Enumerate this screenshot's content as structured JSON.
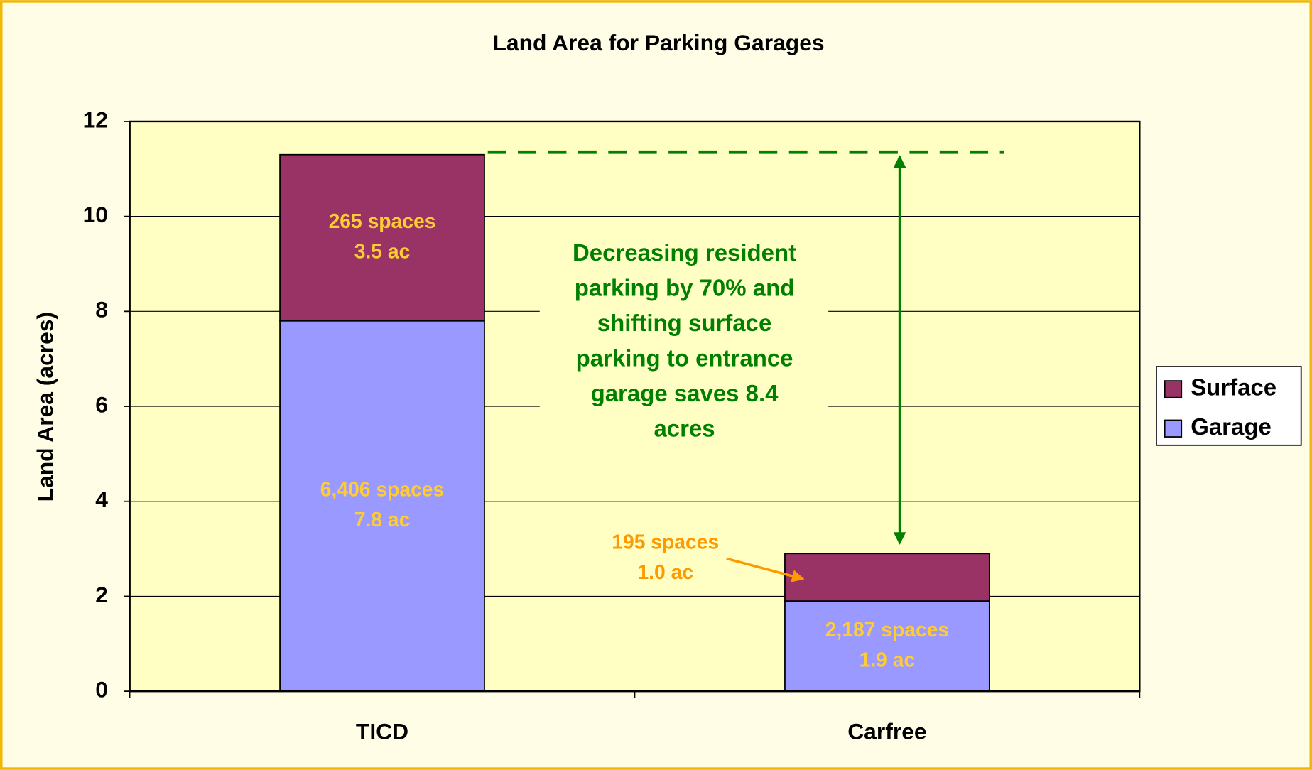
{
  "chart_data": {
    "type": "stacked_bar",
    "title": "Land Area for Parking Garages",
    "ylabel": "Land Area (acres)",
    "categories": [
      "TICD",
      "Carfree"
    ],
    "series": [
      {
        "name": "Garage",
        "color": "#9999ff",
        "values": [
          7.8,
          1.9
        ],
        "value_labels": [
          [
            "6,406 spaces",
            "7.8 ac"
          ],
          [
            "2,187 spaces",
            "1.9 ac"
          ]
        ]
      },
      {
        "name": "Surface",
        "color": "#993366",
        "values": [
          3.5,
          1.0
        ],
        "value_labels": [
          [
            "265 spaces",
            "3.5 ac"
          ],
          [
            "195 spaces",
            "1.0 ac"
          ]
        ]
      }
    ],
    "ylim": [
      0,
      12
    ],
    "yticks": [
      0,
      2,
      4,
      6,
      8,
      10,
      12
    ],
    "grid": true,
    "legend": "right",
    "annotation": [
      "Decreasing resident",
      "parking by 70% and",
      "shifting surface",
      "parking to entrance",
      "garage saves 8.4",
      "acres"
    ]
  }
}
